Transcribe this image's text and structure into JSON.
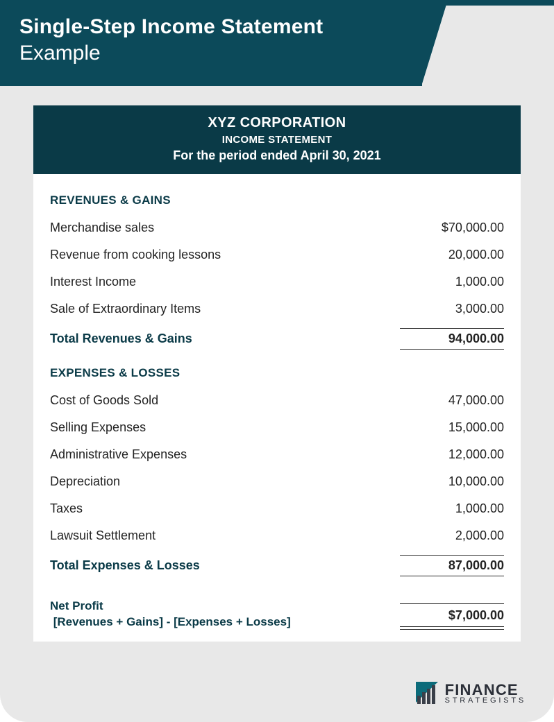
{
  "colors": {
    "header_bg": "#0c4a5a",
    "card_bg": "#e8e8e8",
    "stmt_header_bg": "#0a3a47",
    "text_dark": "#232323",
    "section_color": "#0a3a47",
    "rule_color": "#2a2a2a",
    "logo_color": "#2b2f38",
    "logo_accent": "#0c6b7a"
  },
  "header": {
    "title": "Single-Step Income Statement",
    "subtitle": "Example"
  },
  "statement": {
    "company": "XYZ CORPORATION",
    "doc_type": "INCOME STATEMENT",
    "period": "For the period ended April 30, 2021",
    "revenues_title": "REVENUES & GAINS",
    "revenues": [
      {
        "label": "Merchandise sales",
        "value": "$70,000.00"
      },
      {
        "label": "Revenue from cooking lessons",
        "value": "20,000.00"
      },
      {
        "label": "Interest Income",
        "value": "1,000.00"
      },
      {
        "label": "Sale of Extraordinary Items",
        "value": "3,000.00"
      }
    ],
    "revenues_total_label": "Total Revenues & Gains",
    "revenues_total_value": "94,000.00",
    "expenses_title": "EXPENSES & LOSSES",
    "expenses": [
      {
        "label": "Cost of Goods Sold",
        "value": "47,000.00"
      },
      {
        "label": "Selling Expenses",
        "value": "15,000.00"
      },
      {
        "label": "Administrative Expenses",
        "value": "12,000.00"
      },
      {
        "label": "Depreciation",
        "value": "10,000.00"
      },
      {
        "label": "Taxes",
        "value": "1,000.00"
      },
      {
        "label": "Lawsuit Settlement",
        "value": "2,000.00"
      }
    ],
    "expenses_total_label": "Total Expenses & Losses",
    "expenses_total_value": "87,000.00",
    "net_label_line1": "Net Profit",
    "net_label_line2": " [Revenues + Gains] - [Expenses + Losses]",
    "net_value": "$7,000.00"
  },
  "logo": {
    "main": "FINANCE",
    "sub": "STRATEGISTS"
  }
}
